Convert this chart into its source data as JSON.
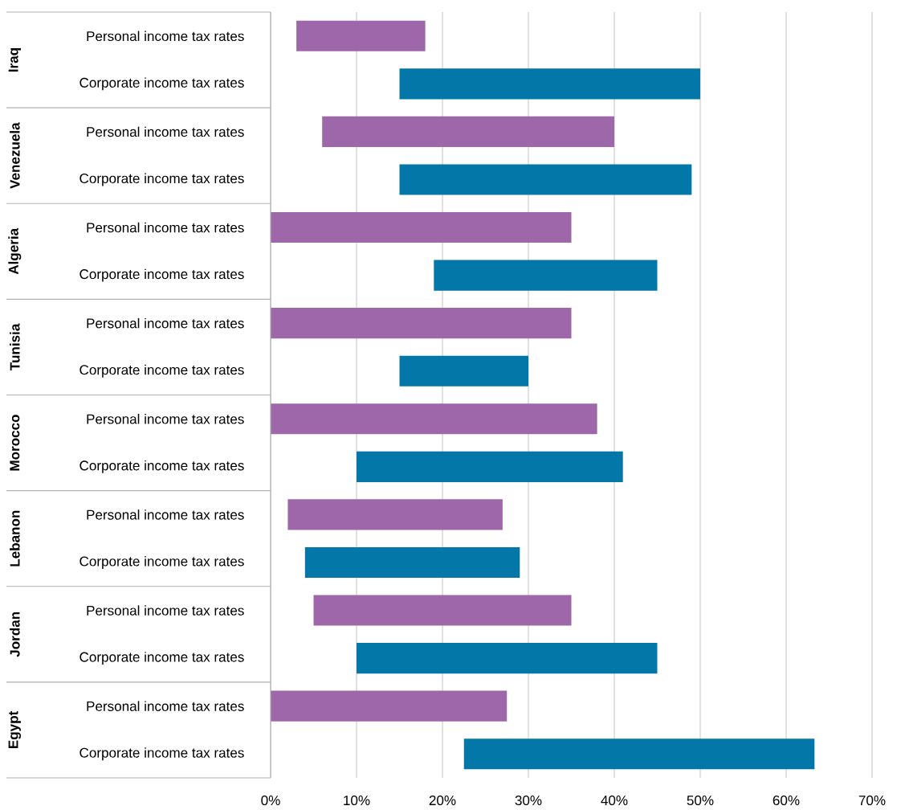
{
  "chart_data": {
    "type": "bar",
    "orientation": "horizontal",
    "grid": "x",
    "categories": [
      "Personal income tax rates",
      "Corporate income tax rates",
      "Personal income tax rates",
      "Corporate income tax rates",
      "Personal income tax rates",
      "Corporate income tax rates",
      "Personal income tax rates",
      "Corporate income tax rates",
      "Personal income tax rates",
      "Corporate income tax rates",
      "Personal income tax rates",
      "Corporate income tax rates",
      "Personal income tax rates",
      "Corporate income tax rates",
      "Personal income tax rates",
      "Corporate income tax rates"
    ],
    "base": [
      3,
      15,
      6,
      15,
      0,
      19,
      0,
      15,
      0,
      10,
      2,
      4,
      5,
      10,
      0,
      22.5
    ],
    "values": [
      15,
      35,
      34,
      34,
      35,
      26,
      35,
      15,
      38,
      31,
      25,
      25,
      30,
      35,
      27.5,
      40.8
    ],
    "colors": [
      "#9e67a9",
      "#0377a8",
      "#9e67a9",
      "#0377a8",
      "#9e67a9",
      "#0377a8",
      "#9e67a9",
      "#0377a8",
      "#9e67a9",
      "#0377a8",
      "#9e67a9",
      "#0377a8",
      "#9e67a9",
      "#0377a8",
      "#9e67a9",
      "#0377a8"
    ],
    "xlim": [
      0,
      70
    ],
    "xticks": [
      {
        "value": 0,
        "label": "0%"
      },
      {
        "value": 10,
        "label": "10%"
      },
      {
        "value": 20,
        "label": "20%"
      },
      {
        "value": 30,
        "label": "30%"
      },
      {
        "value": 40,
        "label": "40%"
      },
      {
        "value": 50,
        "label": "50%"
      },
      {
        "value": 60,
        "label": "60%"
      },
      {
        "value": 70,
        "label": "70%"
      }
    ],
    "annotations": [
      "Iraq",
      "Venezuela",
      "Algeria",
      "Tunisia",
      "Morocco",
      "Lebanon",
      "Jordan",
      "Egypt"
    ]
  }
}
